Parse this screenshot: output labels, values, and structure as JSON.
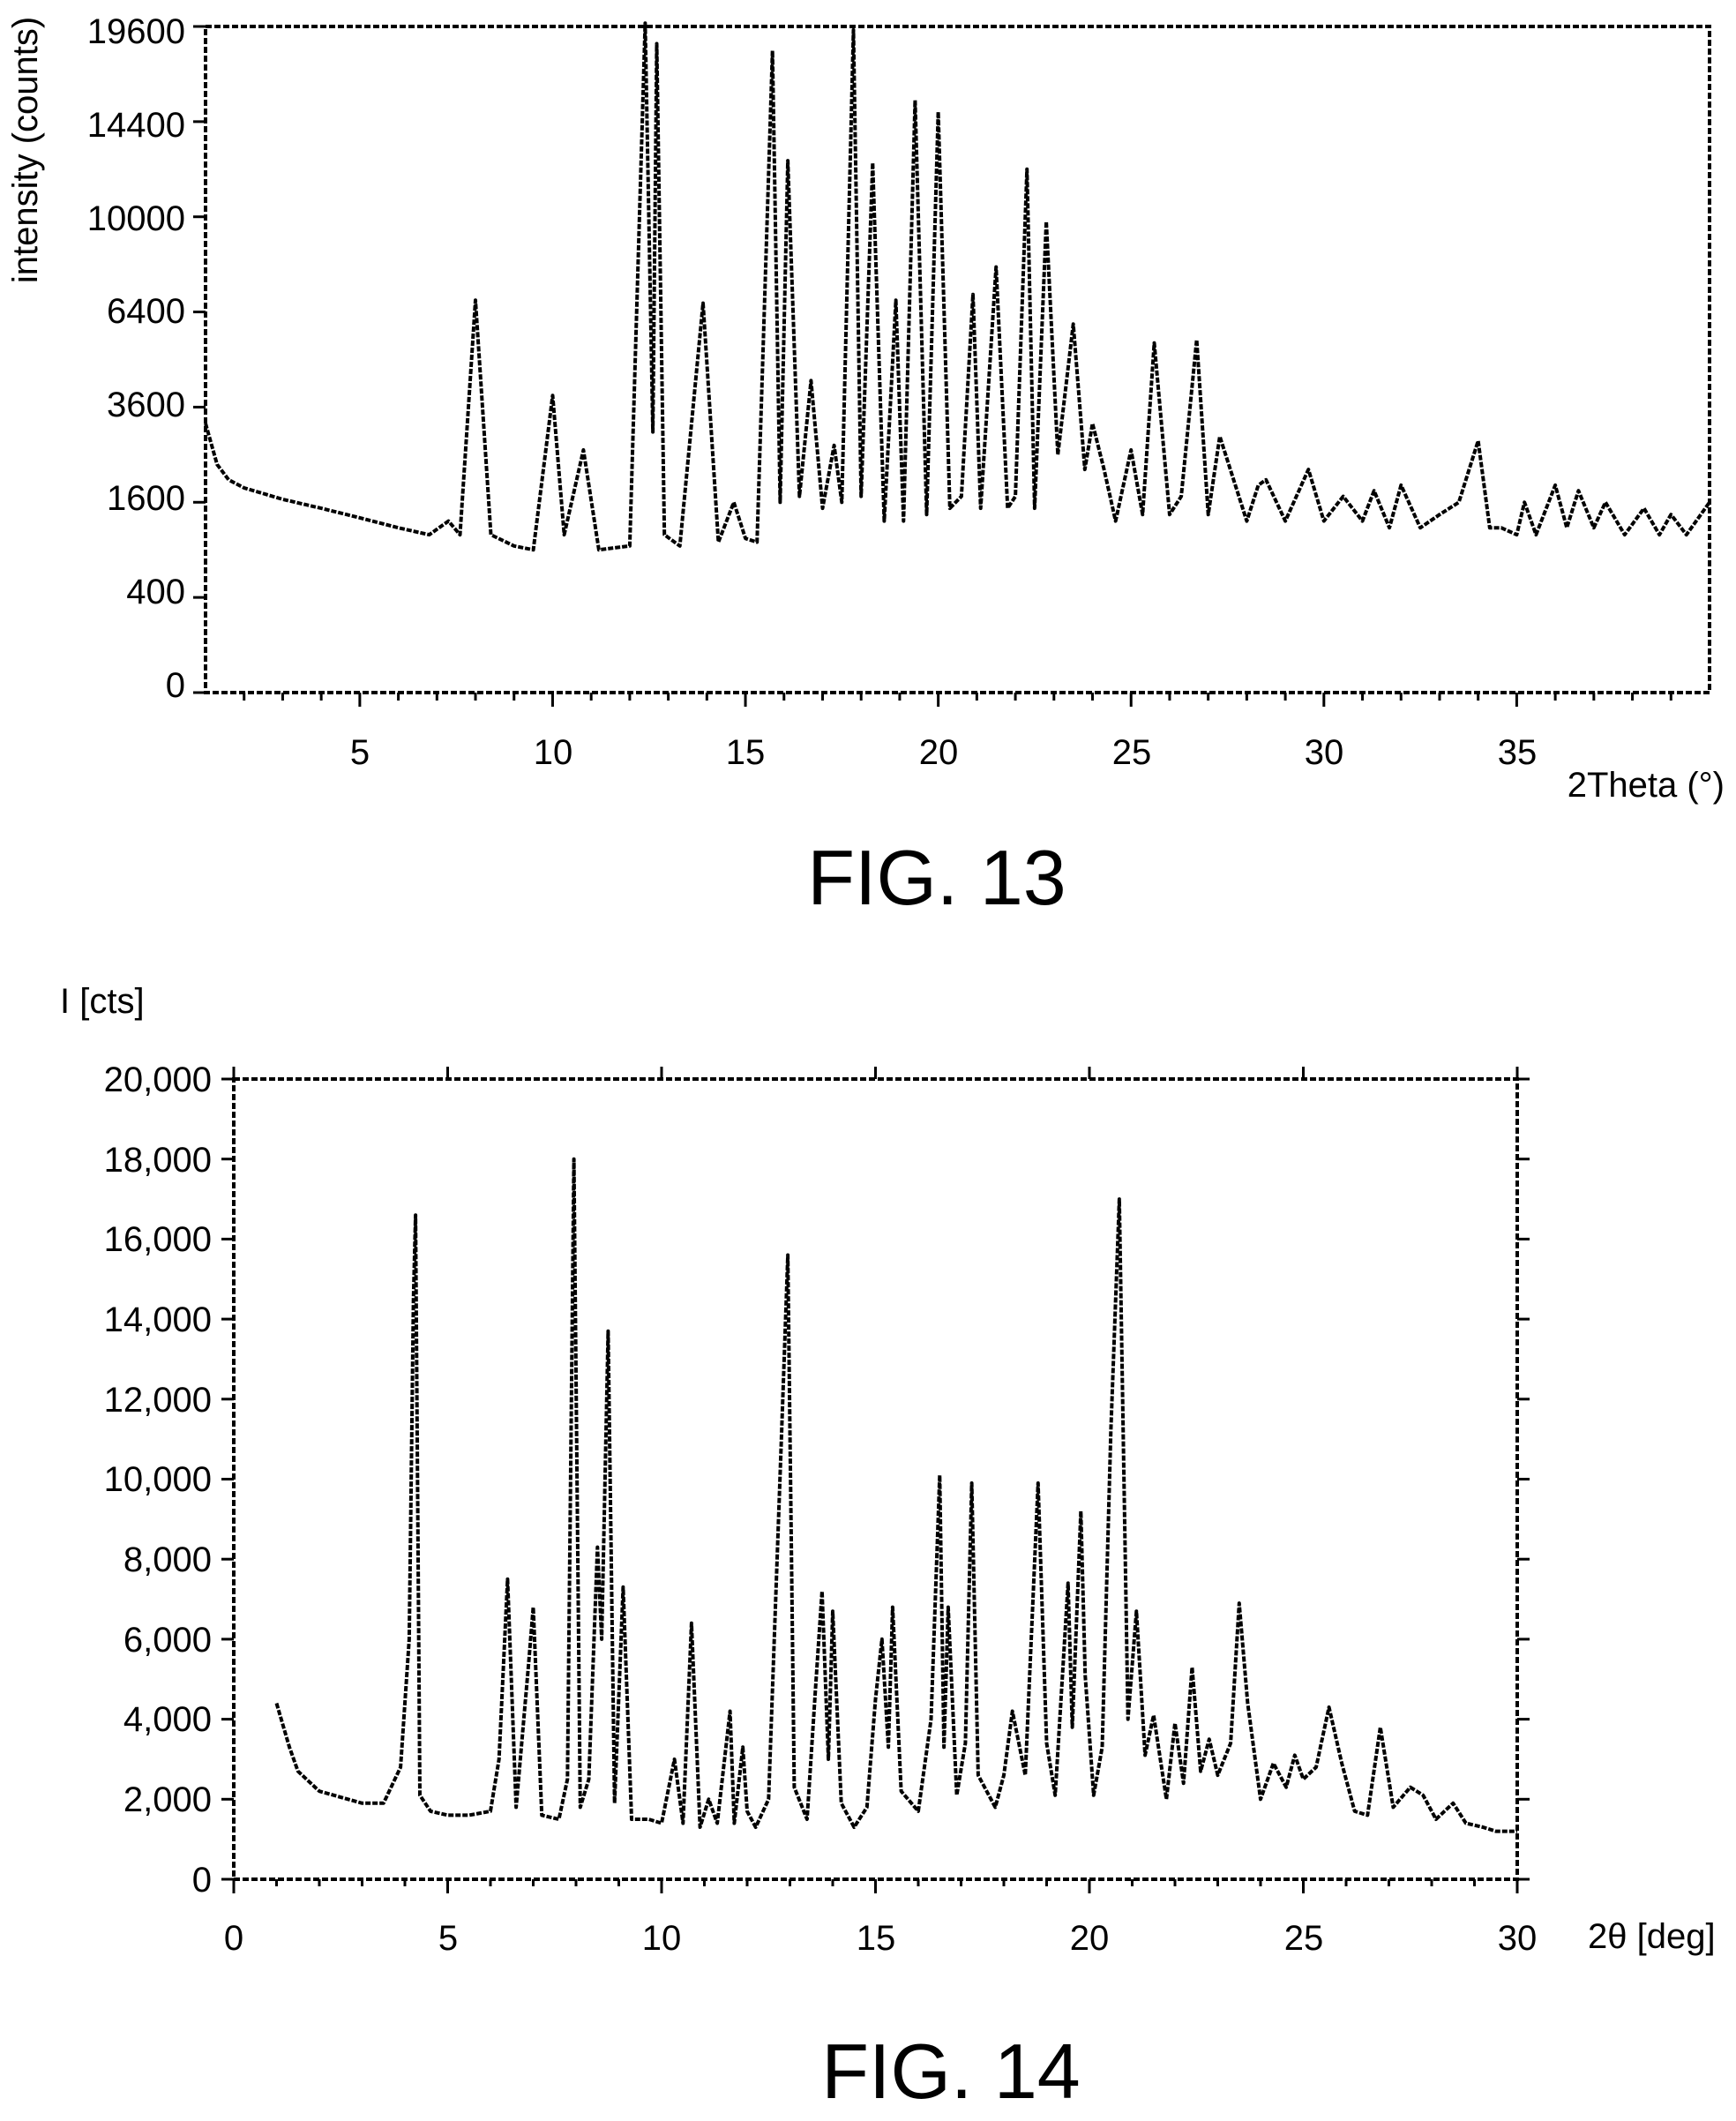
{
  "chart_data": [
    {
      "type": "line",
      "caption": "FIG. 13",
      "xlabel": "2Theta (°)",
      "ylabel": "intensity (counts)",
      "xlim": [
        1,
        40
      ],
      "y_scale": "sqrt",
      "y_ticks": [
        0,
        400,
        1600,
        3600,
        6400,
        10000,
        14400,
        19600
      ],
      "y_tick_labels": [
        "0",
        "400",
        "1600",
        "3600",
        "6400",
        "10000",
        "14400",
        "19600"
      ],
      "x_ticks": [
        5,
        10,
        15,
        20,
        25,
        30,
        35
      ],
      "x_tick_labels": [
        "5",
        "10",
        "15",
        "20",
        "25",
        "30",
        "35"
      ],
      "grid": false,
      "series": [
        {
          "x": [
            1.0,
            1.3,
            1.6,
            2,
            3,
            4,
            5,
            6,
            6.8,
            7.3,
            7.6,
            8.0,
            8.4,
            9.0,
            9.5,
            10.0,
            10.3,
            10.8,
            11.2,
            12.0,
            12.4,
            12.6,
            12.7,
            12.9,
            13.3,
            13.9,
            14.3,
            14.7,
            15.0,
            15.3,
            15.7,
            15.9,
            16.1,
            16.4,
            16.7,
            17.0,
            17.3,
            17.5,
            17.8,
            18.0,
            18.3,
            18.6,
            18.9,
            19.1,
            19.4,
            19.7,
            20.0,
            20.3,
            20.6,
            20.9,
            21.1,
            21.5,
            21.8,
            22.0,
            22.3,
            22.5,
            22.8,
            23.1,
            23.5,
            23.8,
            24.0,
            24.3,
            24.6,
            25.0,
            25.3,
            25.6,
            26.0,
            26.3,
            26.7,
            27.0,
            27.3,
            28.0,
            28.3,
            28.5,
            29.0,
            29.6,
            30.0,
            30.5,
            31.0,
            31.3,
            31.7,
            32.0,
            32.5,
            33.0,
            33.5,
            34.0,
            34.3,
            34.6,
            35.0,
            35.2,
            35.5,
            36.0,
            36.3,
            36.6,
            37.0,
            37.3,
            37.8,
            38.3,
            38.7,
            39.0,
            39.4,
            40.0
          ],
          "y": [
            3200,
            2300,
            2000,
            1850,
            1650,
            1500,
            1350,
            1200,
            1100,
            1300,
            1100,
            6800,
            1100,
            950,
            900,
            3900,
            1100,
            2600,
            900,
            950,
            19800,
            3000,
            18600,
            1100,
            950,
            6700,
            1000,
            1600,
            1050,
            1000,
            18200,
            1600,
            12500,
            1700,
            4300,
            1500,
            2700,
            1600,
            19400,
            1700,
            12400,
            1300,
            6800,
            1300,
            15500,
            1400,
            14900,
            1500,
            1700,
            7000,
            1500,
            8000,
            1500,
            1700,
            12100,
            1500,
            9800,
            2500,
            6000,
            2200,
            3200,
            2200,
            1300,
            2600,
            1400,
            5400,
            1400,
            1700,
            5500,
            1400,
            2900,
            1300,
            1900,
            2000,
            1300,
            2200,
            1300,
            1700,
            1300,
            1800,
            1200,
            1900,
            1200,
            1400,
            1600,
            2800,
            1200,
            1200,
            1100,
            1600,
            1100,
            1900,
            1200,
            1800,
            1200,
            1600,
            1100,
            1500,
            1100,
            1400,
            1100,
            1600
          ]
        }
      ]
    },
    {
      "type": "line",
      "caption": "FIG. 14",
      "xlabel": "2θ [deg]",
      "ylabel": "I [cts]",
      "xlim": [
        0,
        30
      ],
      "ylim": [
        0,
        20000
      ],
      "y_ticks": [
        0,
        2000,
        4000,
        6000,
        8000,
        10000,
        12000,
        14000,
        16000,
        18000,
        20000
      ],
      "y_tick_labels": [
        "0",
        "2,000",
        "4,000",
        "6,000",
        "8,000",
        "10,000",
        "12,000",
        "14,000",
        "16,000",
        "18,000",
        "20,000"
      ],
      "x_ticks": [
        0,
        5,
        10,
        15,
        20,
        25,
        30
      ],
      "x_tick_labels": [
        "0",
        "5",
        "10",
        "15",
        "20",
        "25",
        "30"
      ],
      "grid": false,
      "series": [
        {
          "x": [
            1.0,
            1.3,
            1.5,
            2.0,
            3.0,
            3.5,
            3.9,
            4.1,
            4.2,
            4.25,
            4.35,
            4.6,
            5.0,
            5.5,
            6.0,
            6.2,
            6.4,
            6.6,
            6.9,
            7.0,
            7.2,
            7.6,
            7.8,
            7.95,
            8.1,
            8.3,
            8.5,
            8.6,
            8.75,
            8.9,
            9.1,
            9.3,
            9.7,
            10.0,
            10.3,
            10.5,
            10.7,
            10.9,
            11.1,
            11.3,
            11.6,
            11.7,
            11.9,
            12.0,
            12.2,
            12.5,
            12.8,
            12.95,
            13.1,
            13.4,
            13.6,
            13.75,
            13.9,
            14.0,
            14.2,
            14.5,
            14.8,
            15.0,
            15.15,
            15.3,
            15.4,
            15.6,
            16.0,
            16.3,
            16.5,
            16.6,
            16.7,
            16.9,
            17.1,
            17.25,
            17.4,
            17.8,
            18.0,
            18.2,
            18.5,
            18.8,
            19.0,
            19.2,
            19.5,
            19.6,
            19.8,
            19.9,
            20.1,
            20.3,
            20.5,
            20.7,
            20.9,
            21.1,
            21.3,
            21.5,
            21.8,
            22.0,
            22.2,
            22.4,
            22.6,
            22.8,
            23.0,
            23.3,
            23.5,
            23.7,
            24.0,
            24.3,
            24.6,
            24.8,
            25.0,
            25.3,
            25.6,
            25.9,
            26.2,
            26.5,
            26.8,
            27.1,
            27.5,
            27.8,
            28.1,
            28.5,
            28.8,
            29.2,
            29.5,
            30.0
          ],
          "y": [
            4400,
            3300,
            2700,
            2200,
            1900,
            1900,
            2800,
            6000,
            14500,
            16600,
            2100,
            1700,
            1600,
            1600,
            1700,
            3000,
            7500,
            1800,
            5500,
            6800,
            1600,
            1500,
            2500,
            18000,
            1800,
            2500,
            8300,
            6000,
            13700,
            1900,
            7300,
            1500,
            1500,
            1400,
            3000,
            1400,
            6400,
            1300,
            2000,
            1400,
            4200,
            1400,
            3300,
            1700,
            1300,
            2000,
            11000,
            15600,
            2300,
            1500,
            4800,
            7200,
            3000,
            6700,
            1900,
            1300,
            1800,
            4500,
            6000,
            3300,
            6800,
            2200,
            1700,
            4000,
            10100,
            3300,
            6800,
            2100,
            3400,
            9900,
            2600,
            1800,
            2600,
            4200,
            2600,
            9900,
            3400,
            2100,
            7400,
            3800,
            9200,
            5100,
            2100,
            3300,
            11200,
            17000,
            4000,
            6700,
            3100,
            4100,
            2000,
            3900,
            2400,
            5300,
            2700,
            3500,
            2600,
            3400,
            6900,
            4400,
            2000,
            2900,
            2300,
            3100,
            2500,
            2800,
            4300,
            2900,
            1700,
            1600,
            3800,
            1800,
            2300,
            2100,
            1500,
            1900,
            1400,
            1300,
            1200,
            1200
          ]
        }
      ]
    }
  ]
}
